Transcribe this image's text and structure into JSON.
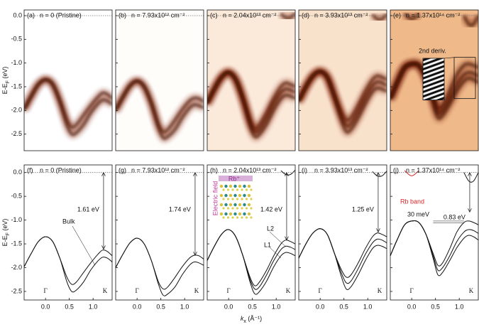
{
  "chart_data": [
    {
      "type": "heatmap",
      "label": "(a)",
      "title": "n = 0 (Pristine)",
      "xlim": [
        -0.45,
        1.4
      ],
      "ylim": [
        -2.85,
        0.12
      ],
      "yticks": [
        {
          "value": 0,
          "label": "0.0"
        },
        -0.5,
        {
          "value": -1,
          "label": "-1.0"
        },
        -1.5,
        {
          "value": -2,
          "label": "-2.0"
        },
        -2.5
      ],
      "ylabel": [
        "E-E",
        "F",
        " (eV)"
      ],
      "background": "#ffffff",
      "color": "#7a1d04",
      "zero_line": true
    },
    {
      "type": "heatmap",
      "label": "(b)",
      "title": "n = 7.93x10¹² cm⁻²",
      "xlim": [
        -0.45,
        1.4
      ],
      "ylim": [
        -2.85,
        0.12
      ],
      "background": "#fffdfa",
      "color": "#7a1d04",
      "zero_line": true
    },
    {
      "type": "heatmap",
      "label": "(c)",
      "title": "n = 2.04x10¹³ cm⁻²",
      "xlim": [
        -0.45,
        1.4
      ],
      "ylim": [
        -2.85,
        0.12
      ],
      "background": "#fbe9d9",
      "color": "#7a1d04",
      "zero_line": true
    },
    {
      "type": "heatmap",
      "label": "(d)",
      "title": "n = 3.93x10¹³ cm⁻²",
      "xlim": [
        -0.45,
        1.4
      ],
      "ylim": [
        -2.85,
        0.12
      ],
      "background": "#f9e2cc",
      "color": "#7a1d04",
      "zero_line": true
    },
    {
      "type": "heatmap",
      "label": "(e)",
      "title": "n = 1.37x10¹⁴ cm⁻²",
      "xlim": [
        -0.45,
        1.4
      ],
      "ylim": [
        -2.85,
        0.12
      ],
      "background": "#efb98a",
      "color": "#6a1703",
      "zero_line": true,
      "annotations": [
        "2nd deriv."
      ]
    },
    {
      "type": "line",
      "label": "(f)",
      "title": "n = 0 (Pristine)",
      "xlim": [
        -0.45,
        1.4
      ],
      "ylim": [
        -2.68,
        0.16
      ],
      "yticks": [
        {
          "value": 0,
          "label": "0.0"
        },
        -0.5,
        {
          "value": -1,
          "label": "-1.0"
        },
        -1.5,
        {
          "value": -2,
          "label": "-2.0"
        },
        -2.5
      ],
      "ylabel": [
        "E-E",
        "F",
        " (eV)"
      ],
      "xticks": [
        {
          "value": 0,
          "label": "0.0"
        },
        0.5,
        {
          "value": 1,
          "label": "1.0"
        }
      ],
      "high_symmetry": [
        {
          "value": 0,
          "label": "Γ"
        },
        {
          "value": 1.25,
          "label": "K"
        }
      ],
      "gap": 1.61,
      "gap_label": "1.61 eV",
      "zero_line": true,
      "annotations": [
        "Bulk"
      ],
      "x": [
        -0.45,
        -0.3,
        -0.15,
        0,
        0.15,
        0.3,
        0.45,
        0.55,
        0.65,
        0.8,
        0.95,
        1.1,
        1.2,
        1.3,
        1.4
      ],
      "series": [
        {
          "color": "#111111",
          "values": [
            -1.98,
            -1.7,
            -1.45,
            -1.35,
            -1.45,
            -1.8,
            -2.2,
            -2.35,
            -2.3,
            -2.1,
            -1.9,
            -1.72,
            -1.63,
            -1.66,
            -1.75
          ]
        },
        {
          "color": "#111111",
          "values": [
            -1.98,
            -1.7,
            -1.45,
            -1.35,
            -1.45,
            -1.8,
            -2.3,
            -2.5,
            -2.47,
            -2.3,
            -2.05,
            -1.86,
            -1.78,
            -1.8,
            -1.88
          ]
        }
      ]
    },
    {
      "type": "line",
      "label": "(g)",
      "title": "n = 7.93x10¹² cm⁻²",
      "xlim": [
        -0.45,
        1.4
      ],
      "ylim": [
        -2.68,
        0.16
      ],
      "xticks": [
        {
          "value": 0,
          "label": "0.0"
        },
        0.5,
        {
          "value": 1,
          "label": "1.0"
        }
      ],
      "high_symmetry": [
        {
          "value": 0,
          "label": "Γ"
        },
        {
          "value": 1.25,
          "label": "K"
        }
      ],
      "gap": 1.74,
      "gap_label": "1.74 eV",
      "zero_line": true,
      "x": [
        -0.45,
        -0.3,
        -0.15,
        0,
        0.15,
        0.3,
        0.45,
        0.55,
        0.65,
        0.8,
        0.95,
        1.1,
        1.2,
        1.3,
        1.4
      ],
      "series": [
        {
          "color": "#111111",
          "values": [
            -2.0,
            -1.72,
            -1.48,
            -1.38,
            -1.5,
            -1.85,
            -2.3,
            -2.45,
            -2.4,
            -2.2,
            -1.98,
            -1.8,
            -1.74,
            -1.75,
            -1.82
          ]
        },
        {
          "color": "#111111",
          "values": [
            -2.0,
            -1.72,
            -1.48,
            -1.38,
            -1.5,
            -1.85,
            -2.35,
            -2.58,
            -2.55,
            -2.4,
            -2.15,
            -1.95,
            -1.88,
            -1.9,
            -1.95
          ]
        }
      ]
    },
    {
      "type": "line",
      "label": "(h)",
      "title": "n = 2.04x10¹³ cm⁻²",
      "xlim": [
        -0.45,
        1.4
      ],
      "ylim": [
        -2.68,
        0.16
      ],
      "xticks": [
        {
          "value": 0,
          "label": "0.0"
        },
        0.5,
        {
          "value": 1,
          "label": "1.0"
        }
      ],
      "xlabel": [
        "k",
        "x",
        " (Å⁻¹)"
      ],
      "high_symmetry": [
        {
          "value": 0,
          "label": "Γ"
        },
        {
          "value": 1.25,
          "label": "K"
        }
      ],
      "gap": 1.42,
      "gap_label": "1.42 eV",
      "zero_line": true,
      "annotations": [
        "L2",
        "L1",
        "Electric field",
        "Rb⁺"
      ],
      "x": [
        -0.45,
        -0.3,
        -0.15,
        0,
        0.15,
        0.3,
        0.45,
        0.55,
        0.65,
        0.8,
        0.95,
        1.1,
        1.2,
        1.3,
        1.4
      ],
      "series": [
        {
          "color": "#111111",
          "values": [
            -1.85,
            -1.55,
            -1.3,
            -1.2,
            -1.35,
            -1.75,
            -2.2,
            -2.38,
            -2.3,
            -2.05,
            -1.75,
            -1.5,
            -1.42,
            -1.45,
            -1.5
          ]
        },
        {
          "color": "#111111",
          "values": [
            -1.85,
            -1.55,
            -1.3,
            -1.2,
            -1.35,
            -1.75,
            -2.25,
            -2.45,
            -2.4,
            -2.15,
            -1.85,
            -1.62,
            -1.55,
            -1.57,
            -1.62
          ]
        },
        {
          "color": "#111111",
          "values": [
            -1.85,
            -1.55,
            -1.3,
            -1.2,
            -1.35,
            -1.75,
            -2.3,
            -2.55,
            -2.5,
            -2.28,
            -1.98,
            -1.75,
            -1.68,
            -1.7,
            -1.75
          ]
        },
        {
          "color": "#111111",
          "values": [
            null,
            null,
            null,
            null,
            null,
            null,
            null,
            null,
            null,
            null,
            null,
            0.04,
            -0.04,
            -0.04,
            0.05
          ]
        }
      ]
    },
    {
      "type": "line",
      "label": "(i)",
      "title": "n = 3.93x10¹³ cm⁻²",
      "xlim": [
        -0.45,
        1.4
      ],
      "ylim": [
        -2.68,
        0.16
      ],
      "xticks": [
        {
          "value": 0,
          "label": "0.0"
        },
        0.5,
        {
          "value": 1,
          "label": "1.0"
        }
      ],
      "high_symmetry": [
        {
          "value": 0,
          "label": "Γ"
        },
        {
          "value": 1.25,
          "label": "K"
        }
      ],
      "gap": 1.25,
      "gap_label": "1.25 eV",
      "zero_line": true,
      "x": [
        -0.45,
        -0.3,
        -0.15,
        0,
        0.15,
        0.3,
        0.45,
        0.55,
        0.65,
        0.8,
        0.95,
        1.1,
        1.2,
        1.3,
        1.4
      ],
      "series": [
        {
          "color": "#111111",
          "values": [
            -1.8,
            -1.5,
            -1.27,
            -1.18,
            -1.3,
            -1.7,
            -2.05,
            -2.2,
            -2.15,
            -1.9,
            -1.6,
            -1.35,
            -1.27,
            -1.3,
            -1.35
          ]
        },
        {
          "color": "#111111",
          "values": [
            -1.8,
            -1.5,
            -1.27,
            -1.18,
            -1.3,
            -1.7,
            -2.12,
            -2.32,
            -2.28,
            -2.02,
            -1.72,
            -1.48,
            -1.4,
            -1.42,
            -1.48
          ]
        },
        {
          "color": "#111111",
          "values": [
            -1.8,
            -1.5,
            -1.27,
            -1.18,
            -1.3,
            -1.7,
            -2.2,
            -2.45,
            -2.4,
            -2.15,
            -1.85,
            -1.6,
            -1.53,
            -1.55,
            -1.6
          ]
        },
        {
          "color": "#111111",
          "values": [
            null,
            null,
            null,
            null,
            null,
            null,
            null,
            null,
            null,
            null,
            null,
            0.02,
            -0.07,
            -0.07,
            0.03
          ]
        }
      ]
    },
    {
      "type": "line",
      "label": "(j)",
      "title": "n = 1.37x10¹⁴ cm⁻²",
      "xlim": [
        -0.45,
        1.4
      ],
      "ylim": [
        -2.68,
        0.16
      ],
      "xticks": [
        {
          "value": 0,
          "label": "0.0"
        },
        0.5,
        {
          "value": 1,
          "label": "1.0"
        }
      ],
      "high_symmetry": [
        {
          "value": 0,
          "label": "Γ"
        },
        {
          "value": 1.25,
          "label": "K"
        }
      ],
      "gap": 0.83,
      "gap_label": "0.83 eV",
      "zero_line": true,
      "annotations": [
        "Rb band",
        "30 meV"
      ],
      "x": [
        -0.45,
        -0.3,
        -0.15,
        0,
        0.15,
        0.3,
        0.45,
        0.55,
        0.65,
        0.8,
        0.95,
        1.1,
        1.2,
        1.3,
        1.4
      ],
      "series": [
        {
          "color": "#111111",
          "values": [
            -1.75,
            -1.4,
            -1.1,
            -1.02,
            -1.05,
            -1.3,
            -1.7,
            -1.95,
            -1.9,
            -1.6,
            -1.25,
            -1.05,
            -1.02,
            -1.05,
            -1.1
          ]
        },
        {
          "color": "#111111",
          "values": [
            -1.75,
            -1.4,
            -1.1,
            -1.02,
            -1.05,
            -1.3,
            -1.75,
            -2.05,
            -2.0,
            -1.75,
            -1.45,
            -1.25,
            -1.2,
            -1.22,
            -1.28
          ]
        },
        {
          "color": "#111111",
          "values": [
            -1.75,
            -1.4,
            -1.1,
            -1.02,
            -1.05,
            -1.3,
            -1.8,
            -2.15,
            -2.1,
            -1.85,
            -1.58,
            -1.38,
            -1.32,
            -1.35,
            -1.42
          ]
        },
        {
          "color": "#111111",
          "values": [
            null,
            null,
            null,
            null,
            null,
            null,
            null,
            null,
            null,
            null,
            null,
            0.0,
            -0.18,
            -0.18,
            0.0
          ]
        },
        {
          "color": "#d62728",
          "values": [
            null,
            null,
            0.04,
            -0.07,
            0.04,
            null,
            null,
            null,
            null,
            null,
            null,
            null,
            null,
            null,
            null
          ]
        }
      ]
    }
  ]
}
